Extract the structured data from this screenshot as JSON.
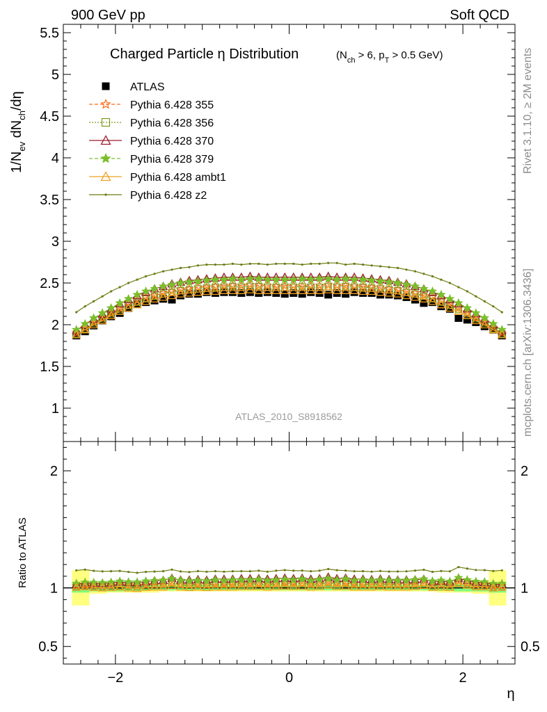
{
  "header": {
    "left": "900 GeV pp",
    "right": "Soft QCD"
  },
  "side_labels": {
    "rivet": "Rivet 3.1.10, ≥ 2M events",
    "mcplots": "mcplots.cern.ch [arXiv:1306.3436]"
  },
  "chart_data": [
    {
      "panel": "main",
      "type": "scatter",
      "title": "Charged Particle η Distribution",
      "title_qualifier": "(N_ch > 6, p_T > 0.5 GeV)",
      "ylabel": "1/N_ev dN_ch/dη",
      "watermark": "ATLAS_2010_S8918562",
      "xlim": [
        -2.6,
        2.6
      ],
      "ylim": [
        0.6,
        5.6
      ],
      "xticks": [
        -2,
        0,
        2
      ],
      "xtick_labels": [
        "−2",
        "0",
        "2"
      ],
      "yticks": [
        1,
        1.5,
        2,
        2.5,
        3,
        3.5,
        4,
        4.5,
        5,
        5.5
      ],
      "ytick_labels": [
        "1",
        "1.5",
        "2",
        "2.5",
        "3",
        "3.5",
        "4",
        "4.5",
        "5",
        "5.5"
      ],
      "legend_position": "top-left",
      "series": [
        {
          "name": "ATLAS",
          "color": "#000000",
          "marker": "square-filled",
          "dash": "none",
          "x": [
            -2.45,
            -2.35,
            -2.25,
            -2.15,
            -2.05,
            -1.95,
            -1.85,
            -1.75,
            -1.65,
            -1.55,
            -1.45,
            -1.35,
            -1.25,
            -1.15,
            -1.05,
            -0.95,
            -0.85,
            -0.75,
            -0.65,
            -0.55,
            -0.45,
            -0.35,
            -0.25,
            -0.15,
            -0.05,
            0.05,
            0.15,
            0.25,
            0.35,
            0.45,
            0.55,
            0.65,
            0.75,
            0.85,
            0.95,
            1.05,
            1.15,
            1.25,
            1.35,
            1.45,
            1.55,
            1.65,
            1.75,
            1.85,
            1.95,
            2.05,
            2.15,
            2.25,
            2.35,
            2.45
          ],
          "y": [
            1.87,
            1.92,
            1.99,
            2.05,
            2.1,
            2.14,
            2.2,
            2.25,
            2.27,
            2.29,
            2.31,
            2.3,
            2.35,
            2.37,
            2.37,
            2.39,
            2.38,
            2.39,
            2.39,
            2.38,
            2.39,
            2.38,
            2.39,
            2.38,
            2.37,
            2.38,
            2.37,
            2.39,
            2.38,
            2.36,
            2.38,
            2.37,
            2.39,
            2.38,
            2.38,
            2.36,
            2.36,
            2.35,
            2.33,
            2.3,
            2.26,
            2.27,
            2.22,
            2.19,
            2.08,
            2.06,
            2.03,
            1.98,
            1.94,
            1.87
          ]
        },
        {
          "name": "Pythia 6.428 355",
          "color": "#ff6a1a",
          "marker": "star-open",
          "dash": "5,3",
          "x": [
            -2.45,
            -2.35,
            -2.25,
            -2.15,
            -2.05,
            -1.95,
            -1.85,
            -1.75,
            -1.65,
            -1.55,
            -1.45,
            -1.35,
            -1.25,
            -1.15,
            -1.05,
            -0.95,
            -0.85,
            -0.75,
            -0.65,
            -0.55,
            -0.45,
            -0.35,
            -0.25,
            -0.15,
            -0.05,
            0.05,
            0.15,
            0.25,
            0.35,
            0.45,
            0.55,
            0.65,
            0.75,
            0.85,
            0.95,
            1.05,
            1.15,
            1.25,
            1.35,
            1.45,
            1.55,
            1.65,
            1.75,
            1.85,
            1.95,
            2.05,
            2.15,
            2.25,
            2.35,
            2.45
          ],
          "y": [
            1.9,
            1.96,
            2.03,
            2.08,
            2.14,
            2.2,
            2.25,
            2.29,
            2.33,
            2.35,
            2.38,
            2.4,
            2.42,
            2.43,
            2.45,
            2.45,
            2.46,
            2.47,
            2.47,
            2.47,
            2.48,
            2.47,
            2.47,
            2.46,
            2.47,
            2.47,
            2.46,
            2.47,
            2.47,
            2.48,
            2.47,
            2.47,
            2.47,
            2.46,
            2.45,
            2.45,
            2.43,
            2.42,
            2.4,
            2.38,
            2.35,
            2.33,
            2.29,
            2.25,
            2.2,
            2.14,
            2.08,
            2.03,
            1.96,
            1.9
          ]
        },
        {
          "name": "Pythia 6.428 356",
          "color": "#7a9a1a",
          "marker": "square-open",
          "dash": "2,2",
          "x": [
            -2.45,
            -2.35,
            -2.25,
            -2.15,
            -2.05,
            -1.95,
            -1.85,
            -1.75,
            -1.65,
            -1.55,
            -1.45,
            -1.35,
            -1.25,
            -1.15,
            -1.05,
            -0.95,
            -0.85,
            -0.75,
            -0.65,
            -0.55,
            -0.45,
            -0.35,
            -0.25,
            -0.15,
            -0.05,
            0.05,
            0.15,
            0.25,
            0.35,
            0.45,
            0.55,
            0.65,
            0.75,
            0.85,
            0.95,
            1.05,
            1.15,
            1.25,
            1.35,
            1.45,
            1.55,
            1.65,
            1.75,
            1.85,
            1.95,
            2.05,
            2.15,
            2.25,
            2.35,
            2.45
          ],
          "y": [
            1.89,
            1.95,
            2.02,
            2.07,
            2.13,
            2.18,
            2.23,
            2.27,
            2.31,
            2.34,
            2.37,
            2.39,
            2.41,
            2.42,
            2.43,
            2.44,
            2.45,
            2.45,
            2.46,
            2.45,
            2.46,
            2.46,
            2.45,
            2.45,
            2.45,
            2.45,
            2.46,
            2.45,
            2.45,
            2.46,
            2.45,
            2.46,
            2.45,
            2.45,
            2.44,
            2.43,
            2.42,
            2.41,
            2.39,
            2.37,
            2.34,
            2.31,
            2.27,
            2.23,
            2.18,
            2.13,
            2.07,
            2.02,
            1.95,
            1.89
          ]
        },
        {
          "name": "Pythia 6.428 370",
          "color": "#9c1a2c",
          "marker": "triangle-open",
          "dash": "none",
          "x": [
            -2.45,
            -2.35,
            -2.25,
            -2.15,
            -2.05,
            -1.95,
            -1.85,
            -1.75,
            -1.65,
            -1.55,
            -1.45,
            -1.35,
            -1.25,
            -1.15,
            -1.05,
            -0.95,
            -0.85,
            -0.75,
            -0.65,
            -0.55,
            -0.45,
            -0.35,
            -0.25,
            -0.15,
            -0.05,
            0.05,
            0.15,
            0.25,
            0.35,
            0.45,
            0.55,
            0.65,
            0.75,
            0.85,
            0.95,
            1.05,
            1.15,
            1.25,
            1.35,
            1.45,
            1.55,
            1.65,
            1.75,
            1.85,
            1.95,
            2.05,
            2.15,
            2.25,
            2.35,
            2.45
          ],
          "y": [
            1.93,
            2.0,
            2.07,
            2.13,
            2.19,
            2.25,
            2.3,
            2.35,
            2.39,
            2.43,
            2.46,
            2.49,
            2.51,
            2.53,
            2.54,
            2.55,
            2.56,
            2.57,
            2.57,
            2.57,
            2.58,
            2.57,
            2.57,
            2.57,
            2.57,
            2.57,
            2.57,
            2.57,
            2.57,
            2.58,
            2.57,
            2.57,
            2.57,
            2.56,
            2.55,
            2.54,
            2.53,
            2.51,
            2.49,
            2.46,
            2.43,
            2.39,
            2.35,
            2.3,
            2.25,
            2.19,
            2.13,
            2.07,
            2.0,
            1.93
          ]
        },
        {
          "name": "Pythia 6.428 379",
          "color": "#7abf2a",
          "marker": "star-filled",
          "dash": "5,3",
          "x": [
            -2.45,
            -2.35,
            -2.25,
            -2.15,
            -2.05,
            -1.95,
            -1.85,
            -1.75,
            -1.65,
            -1.55,
            -1.45,
            -1.35,
            -1.25,
            -1.15,
            -1.05,
            -0.95,
            -0.85,
            -0.75,
            -0.65,
            -0.55,
            -0.45,
            -0.35,
            -0.25,
            -0.15,
            -0.05,
            0.05,
            0.15,
            0.25,
            0.35,
            0.45,
            0.55,
            0.65,
            0.75,
            0.85,
            0.95,
            1.05,
            1.15,
            1.25,
            1.35,
            1.45,
            1.55,
            1.65,
            1.75,
            1.85,
            1.95,
            2.05,
            2.15,
            2.25,
            2.35,
            2.45
          ],
          "y": [
            1.94,
            2.01,
            2.08,
            2.14,
            2.2,
            2.26,
            2.31,
            2.36,
            2.4,
            2.43,
            2.46,
            2.48,
            2.5,
            2.51,
            2.52,
            2.53,
            2.54,
            2.54,
            2.55,
            2.54,
            2.55,
            2.55,
            2.54,
            2.54,
            2.54,
            2.54,
            2.55,
            2.54,
            2.55,
            2.55,
            2.54,
            2.55,
            2.54,
            2.54,
            2.53,
            2.52,
            2.51,
            2.5,
            2.48,
            2.46,
            2.43,
            2.4,
            2.36,
            2.31,
            2.26,
            2.2,
            2.14,
            2.08,
            2.01,
            1.94
          ]
        },
        {
          "name": "Pythia 6.428 ambt1",
          "color": "#f0a020",
          "marker": "triangle-open",
          "dash": "none",
          "x": [
            -2.45,
            -2.35,
            -2.25,
            -2.15,
            -2.05,
            -1.95,
            -1.85,
            -1.75,
            -1.65,
            -1.55,
            -1.45,
            -1.35,
            -1.25,
            -1.15,
            -1.05,
            -0.95,
            -0.85,
            -0.75,
            -0.65,
            -0.55,
            -0.45,
            -0.35,
            -0.25,
            -0.15,
            -0.05,
            0.05,
            0.15,
            0.25,
            0.35,
            0.45,
            0.55,
            0.65,
            0.75,
            0.85,
            0.95,
            1.05,
            1.15,
            1.25,
            1.35,
            1.45,
            1.55,
            1.65,
            1.75,
            1.85,
            1.95,
            2.05,
            2.15,
            2.25,
            2.35,
            2.45
          ],
          "y": [
            1.88,
            1.94,
            2.0,
            2.05,
            2.11,
            2.16,
            2.2,
            2.24,
            2.28,
            2.31,
            2.33,
            2.35,
            2.37,
            2.38,
            2.39,
            2.4,
            2.4,
            2.41,
            2.41,
            2.41,
            2.42,
            2.41,
            2.41,
            2.41,
            2.41,
            2.41,
            2.41,
            2.41,
            2.41,
            2.42,
            2.41,
            2.41,
            2.41,
            2.4,
            2.4,
            2.39,
            2.38,
            2.37,
            2.35,
            2.33,
            2.31,
            2.28,
            2.24,
            2.2,
            2.16,
            2.11,
            2.05,
            2.0,
            1.94,
            1.88
          ]
        },
        {
          "name": "Pythia 6.428 z2",
          "color": "#6b7a10",
          "marker": "dot",
          "dash": "none",
          "x": [
            -2.45,
            -2.35,
            -2.25,
            -2.15,
            -2.05,
            -1.95,
            -1.85,
            -1.75,
            -1.65,
            -1.55,
            -1.45,
            -1.35,
            -1.25,
            -1.15,
            -1.05,
            -0.95,
            -0.85,
            -0.75,
            -0.65,
            -0.55,
            -0.45,
            -0.35,
            -0.25,
            -0.15,
            -0.05,
            0.05,
            0.15,
            0.25,
            0.35,
            0.45,
            0.55,
            0.65,
            0.75,
            0.85,
            0.95,
            1.05,
            1.15,
            1.25,
            1.35,
            1.45,
            1.55,
            1.65,
            1.75,
            1.85,
            1.95,
            2.05,
            2.15,
            2.25,
            2.35,
            2.45
          ],
          "y": [
            2.15,
            2.22,
            2.28,
            2.34,
            2.4,
            2.45,
            2.5,
            2.54,
            2.58,
            2.61,
            2.64,
            2.66,
            2.68,
            2.69,
            2.71,
            2.72,
            2.72,
            2.72,
            2.73,
            2.72,
            2.73,
            2.73,
            2.72,
            2.73,
            2.73,
            2.73,
            2.72,
            2.73,
            2.73,
            2.74,
            2.74,
            2.72,
            2.73,
            2.72,
            2.71,
            2.7,
            2.69,
            2.68,
            2.66,
            2.64,
            2.61,
            2.58,
            2.54,
            2.5,
            2.45,
            2.4,
            2.34,
            2.28,
            2.22,
            2.15
          ]
        }
      ]
    },
    {
      "panel": "ratio",
      "type": "scatter",
      "ylabel": "Ratio to ATLAS",
      "xlabel": "η",
      "xlim": [
        -2.6,
        2.6
      ],
      "ylim": [
        0.35,
        2.25
      ],
      "yticks": [
        0.5,
        1,
        2
      ],
      "ytick_labels": [
        "0.5",
        "1",
        "2"
      ],
      "reference_line": 1,
      "uncertainty_band": {
        "x_edges": [
          -2.5,
          -2.3,
          -2.1,
          -1.9,
          -1.7,
          -1.5,
          -1.3,
          -1.1,
          -0.9,
          -0.7,
          -0.5,
          -0.3,
          -0.1,
          0.1,
          0.3,
          0.5,
          0.7,
          0.9,
          1.1,
          1.3,
          1.5,
          1.7,
          1.9,
          2.1,
          2.3,
          2.5
        ],
        "outer": [
          0.15,
          0.05,
          0.04,
          0.04,
          0.04,
          0.03,
          0.03,
          0.03,
          0.03,
          0.03,
          0.03,
          0.03,
          0.03,
          0.03,
          0.03,
          0.03,
          0.03,
          0.03,
          0.03,
          0.03,
          0.03,
          0.04,
          0.04,
          0.05,
          0.15
        ],
        "inner": [
          0.04,
          0.03,
          0.03,
          0.025,
          0.02,
          0.02,
          0.02,
          0.02,
          0.02,
          0.02,
          0.02,
          0.02,
          0.02,
          0.02,
          0.02,
          0.02,
          0.02,
          0.02,
          0.02,
          0.02,
          0.02,
          0.025,
          0.03,
          0.03,
          0.04
        ],
        "outer_color": "#ffff80",
        "inner_color": "#80ff80"
      }
    }
  ]
}
